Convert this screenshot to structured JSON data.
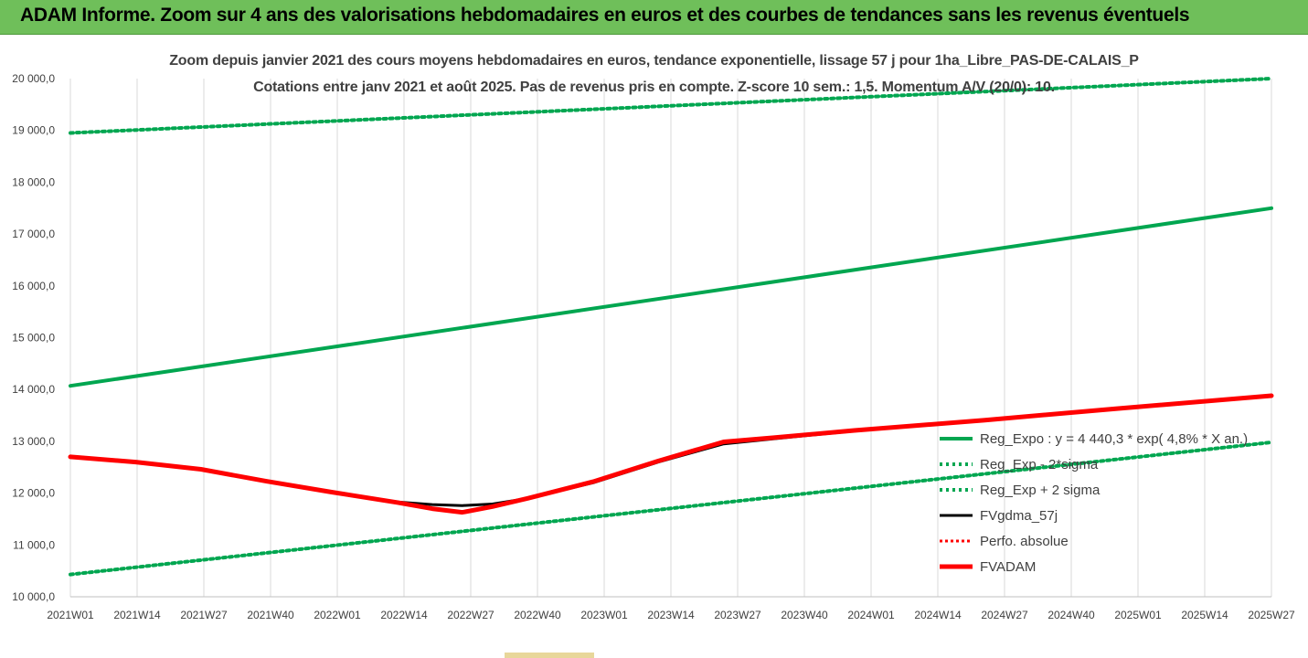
{
  "banner": {
    "title": "ADAM Informe. Zoom sur 4 ans des valorisations hebdomadaires en euros et des courbes de tendances sans les revenus éventuels"
  },
  "colors": {
    "banner": "#6fbf5a",
    "regression": "#00a650",
    "sigma": "#00a650",
    "fvgdma": "#000000",
    "perfo": "#ff0000",
    "fvadam": "#ff0000"
  },
  "chart_data": {
    "type": "line",
    "title": "Zoom depuis janvier 2021 des cours moyens hebdomadaires en euros, tendance exponentielle, lissage 57 j pour 1ha_Libre_PAS-DE-CALAIS_P",
    "subtitle": "Cotations entre janv 2021 et août 2025. Pas de revenus pris en compte. Z-score 10 sem.: 1,5. Momentum A/V (20/0): 10.",
    "ylim": [
      10000,
      20000
    ],
    "yticks": [
      "10 000,0",
      "11 000,0",
      "12 000,0",
      "13 000,0",
      "14 000,0",
      "15 000,0",
      "16 000,0",
      "17 000,0",
      "18 000,0",
      "19 000,0",
      "20 000,0"
    ],
    "xticks": [
      "2021W01",
      "2021W14",
      "2021W27",
      "2021W40",
      "2022W01",
      "2022W14",
      "2022W27",
      "2022W40",
      "2023W01",
      "2023W14",
      "2023W27",
      "2023W40",
      "2024W01",
      "2024W14",
      "2024W27",
      "2024W40",
      "2025W01",
      "2025W14",
      "2025W27"
    ],
    "x_week_count": 240,
    "grid": "vertical",
    "legend_position": "right",
    "series": [
      {
        "name": "Reg_Expo : y = 4 440,3 * exp( 4,8% * X an.)",
        "style": "solid-thick",
        "points": [
          [
            0,
            14070
          ],
          [
            239,
            17500
          ]
        ]
      },
      {
        "name": "Reg_Exp - 2*sigma",
        "style": "dotted",
        "points": [
          [
            0,
            10430
          ],
          [
            239,
            12980
          ]
        ]
      },
      {
        "name": "Reg_Exp + 2 sigma",
        "style": "dotted",
        "points": [
          [
            0,
            18950
          ],
          [
            239,
            20000
          ]
        ]
      },
      {
        "name": "FVgdma_57j",
        "style": "solid-black",
        "points": [
          [
            0,
            12700
          ],
          [
            13,
            12600
          ],
          [
            26,
            12450
          ],
          [
            39,
            12230
          ],
          [
            52,
            12010
          ],
          [
            65,
            11830
          ],
          [
            72,
            11780
          ],
          [
            78,
            11760
          ],
          [
            84,
            11790
          ],
          [
            91,
            11900
          ],
          [
            104,
            12200
          ],
          [
            117,
            12600
          ],
          [
            130,
            12950
          ],
          [
            140,
            13050
          ],
          [
            156,
            13200
          ],
          [
            182,
            13400
          ],
          [
            208,
            13620
          ],
          [
            239,
            13870
          ]
        ]
      },
      {
        "name": "Perfo. absolue",
        "style": "dotted-red",
        "points": []
      },
      {
        "name": "FVADAM",
        "style": "solid-red-thick",
        "points": [
          [
            0,
            12700
          ],
          [
            13,
            12600
          ],
          [
            26,
            12460
          ],
          [
            39,
            12230
          ],
          [
            52,
            12020
          ],
          [
            65,
            11820
          ],
          [
            72,
            11700
          ],
          [
            78,
            11630
          ],
          [
            84,
            11740
          ],
          [
            91,
            11900
          ],
          [
            104,
            12220
          ],
          [
            117,
            12620
          ],
          [
            130,
            12990
          ],
          [
            140,
            13070
          ],
          [
            156,
            13210
          ],
          [
            182,
            13410
          ],
          [
            208,
            13630
          ],
          [
            239,
            13880
          ]
        ]
      }
    ]
  }
}
